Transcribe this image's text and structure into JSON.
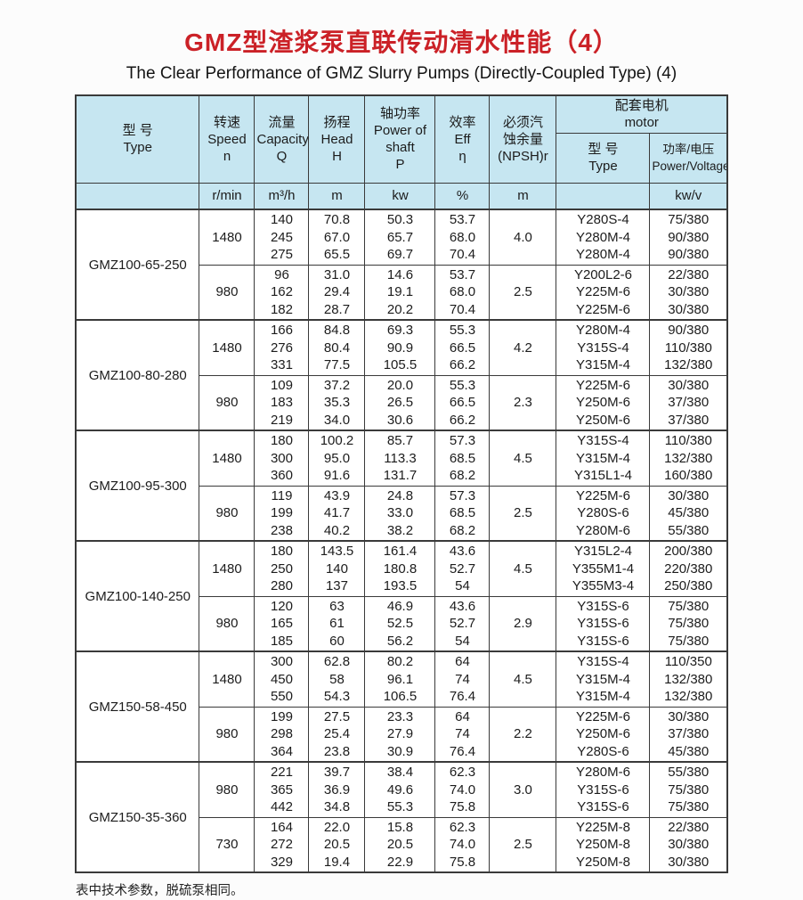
{
  "page": {
    "title_zh": "GMZ型渣浆泵直联传动清水性能（4）",
    "title_en": "The Clear Performance of GMZ Slurry Pumps (Directly-Coupled Type) (4)",
    "footnote": "表中技术参数，脱硫泵相同。"
  },
  "colors": {
    "title_red": "#cb2127",
    "header_blue": "#c6e6f1",
    "line": "#3a3a3a",
    "text": "#1c1c1c"
  },
  "table": {
    "header": {
      "type_zh": "型  号",
      "type_en": "Type",
      "speed": [
        "转速",
        "Speed",
        "n"
      ],
      "capacity": [
        "流量",
        "Capacity",
        "Q"
      ],
      "head": [
        "扬程",
        "Head",
        "H"
      ],
      "power": [
        "轴功率",
        "Power of",
        "shaft",
        "P"
      ],
      "eff": [
        "效率",
        "Eff",
        "η"
      ],
      "npsh": [
        "必须汽",
        "蚀余量",
        "(NPSH)r"
      ],
      "motor_group_zh": "配套电机",
      "motor_group_en": "motor",
      "motor_type_zh": "型  号",
      "motor_type_en": "Type",
      "motor_power_zh": "功率/电压",
      "motor_power_en": "Power/Voltage",
      "units": {
        "type": "",
        "speed": "r/min",
        "capacity": "m³/h",
        "head": "m",
        "power": "kw",
        "eff": "%",
        "npsh": "m",
        "motor_type": "",
        "motor_power": "kw/v"
      }
    },
    "blocks": [
      {
        "model": "GMZ100-65-250",
        "rows": [
          {
            "speed": "1480",
            "q": [
              "140",
              "245",
              "275"
            ],
            "h": [
              "70.8",
              "67.0",
              "65.5"
            ],
            "p": [
              "50.3",
              "65.7",
              "69.7"
            ],
            "eff": [
              "53.7",
              "68.0",
              "70.4"
            ],
            "npsh": "4.0",
            "motor": [
              "Y280S-4",
              "Y280M-4",
              "Y280M-4"
            ],
            "pv": [
              "75/380",
              "90/380",
              "90/380"
            ]
          },
          {
            "speed": "980",
            "q": [
              "96",
              "162",
              "182"
            ],
            "h": [
              "31.0",
              "29.4",
              "28.7"
            ],
            "p": [
              "14.6",
              "19.1",
              "20.2"
            ],
            "eff": [
              "53.7",
              "68.0",
              "70.4"
            ],
            "npsh": "2.5",
            "motor": [
              "Y200L2-6",
              "Y225M-6",
              "Y225M-6"
            ],
            "pv": [
              "22/380",
              "30/380",
              "30/380"
            ]
          }
        ]
      },
      {
        "model": "GMZ100-80-280",
        "rows": [
          {
            "speed": "1480",
            "q": [
              "166",
              "276",
              "331"
            ],
            "h": [
              "84.8",
              "80.4",
              "77.5"
            ],
            "p": [
              "69.3",
              "90.9",
              "105.5"
            ],
            "eff": [
              "55.3",
              "66.5",
              "66.2"
            ],
            "npsh": "4.2",
            "motor": [
              "Y280M-4",
              "Y315S-4",
              "Y315M-4"
            ],
            "pv": [
              "90/380",
              "110/380",
              "132/380"
            ]
          },
          {
            "speed": "980",
            "q": [
              "109",
              "183",
              "219"
            ],
            "h": [
              "37.2",
              "35.3",
              "34.0"
            ],
            "p": [
              "20.0",
              "26.5",
              "30.6"
            ],
            "eff": [
              "55.3",
              "66.5",
              "66.2"
            ],
            "npsh": "2.3",
            "motor": [
              "Y225M-6",
              "Y250M-6",
              "Y250M-6"
            ],
            "pv": [
              "30/380",
              "37/380",
              "37/380"
            ]
          }
        ]
      },
      {
        "model": "GMZ100-95-300",
        "rows": [
          {
            "speed": "1480",
            "q": [
              "180",
              "300",
              "360"
            ],
            "h": [
              "100.2",
              "95.0",
              "91.6"
            ],
            "p": [
              "85.7",
              "113.3",
              "131.7"
            ],
            "eff": [
              "57.3",
              "68.5",
              "68.2"
            ],
            "npsh": "4.5",
            "motor": [
              "Y315S-4",
              "Y315M-4",
              "Y315L1-4"
            ],
            "pv": [
              "110/380",
              "132/380",
              "160/380"
            ]
          },
          {
            "speed": "980",
            "q": [
              "119",
              "199",
              "238"
            ],
            "h": [
              "43.9",
              "41.7",
              "40.2"
            ],
            "p": [
              "24.8",
              "33.0",
              "38.2"
            ],
            "eff": [
              "57.3",
              "68.5",
              "68.2"
            ],
            "npsh": "2.5",
            "motor": [
              "Y225M-6",
              "Y280S-6",
              "Y280M-6"
            ],
            "pv": [
              "30/380",
              "45/380",
              "55/380"
            ]
          }
        ]
      },
      {
        "model": "GMZ100-140-250",
        "rows": [
          {
            "speed": "1480",
            "q": [
              "180",
              "250",
              "280"
            ],
            "h": [
              "143.5",
              "140",
              "137"
            ],
            "p": [
              "161.4",
              "180.8",
              "193.5"
            ],
            "eff": [
              "43.6",
              "52.7",
              "54"
            ],
            "npsh": "4.5",
            "motor": [
              "Y315L2-4",
              "Y355M1-4",
              "Y355M3-4"
            ],
            "pv": [
              "200/380",
              "220/380",
              "250/380"
            ]
          },
          {
            "speed": "980",
            "q": [
              "120",
              "165",
              "185"
            ],
            "h": [
              "63",
              "61",
              "60"
            ],
            "p": [
              "46.9",
              "52.5",
              "56.2"
            ],
            "eff": [
              "43.6",
              "52.7",
              "54"
            ],
            "npsh": "2.9",
            "motor": [
              "Y315S-6",
              "Y315S-6",
              "Y315S-6"
            ],
            "pv": [
              "75/380",
              "75/380",
              "75/380"
            ]
          }
        ]
      },
      {
        "model": "GMZ150-58-450",
        "rows": [
          {
            "speed": "1480",
            "q": [
              "300",
              "450",
              "550"
            ],
            "h": [
              "62.8",
              "58",
              "54.3"
            ],
            "p": [
              "80.2",
              "96.1",
              "106.5"
            ],
            "eff": [
              "64",
              "74",
              "76.4"
            ],
            "npsh": "4.5",
            "motor": [
              "Y315S-4",
              "Y315M-4",
              "Y315M-4"
            ],
            "pv": [
              "110/350",
              "132/380",
              "132/380"
            ]
          },
          {
            "speed": "980",
            "q": [
              "199",
              "298",
              "364"
            ],
            "h": [
              "27.5",
              "25.4",
              "23.8"
            ],
            "p": [
              "23.3",
              "27.9",
              "30.9"
            ],
            "eff": [
              "64",
              "74",
              "76.4"
            ],
            "npsh": "2.2",
            "motor": [
              "Y225M-6",
              "Y250M-6",
              "Y280S-6"
            ],
            "pv": [
              "30/380",
              "37/380",
              "45/380"
            ]
          }
        ]
      },
      {
        "model": "GMZ150-35-360",
        "rows": [
          {
            "speed": "980",
            "q": [
              "221",
              "365",
              "442"
            ],
            "h": [
              "39.7",
              "36.9",
              "34.8"
            ],
            "p": [
              "38.4",
              "49.6",
              "55.3"
            ],
            "eff": [
              "62.3",
              "74.0",
              "75.8"
            ],
            "npsh": "3.0",
            "motor": [
              "Y280M-6",
              "Y315S-6",
              "Y315S-6"
            ],
            "pv": [
              "55/380",
              "75/380",
              "75/380"
            ]
          },
          {
            "speed": "730",
            "q": [
              "164",
              "272",
              "329"
            ],
            "h": [
              "22.0",
              "20.5",
              "19.4"
            ],
            "p": [
              "15.8",
              "20.5",
              "22.9"
            ],
            "eff": [
              "62.3",
              "74.0",
              "75.8"
            ],
            "npsh": "2.5",
            "motor": [
              "Y225M-8",
              "Y250M-8",
              "Y250M-8"
            ],
            "pv": [
              "22/380",
              "30/380",
              "30/380"
            ]
          }
        ]
      }
    ]
  }
}
